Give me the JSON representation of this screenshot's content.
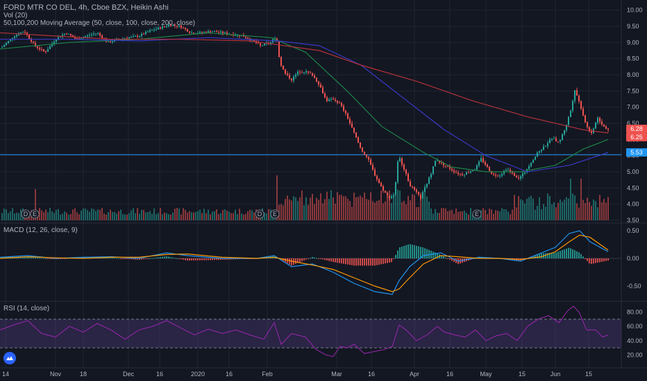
{
  "header": {
    "title": "FORD MTR CO DEL, 4h, Cboe BZX, Heikin Ashi",
    "volume_label": "Vol (20)",
    "ma_label": "50,100,200 Moving Average (50, close, 100, close, 200, close)"
  },
  "panes": {
    "macd_label": "MACD (12, 26, close, 9)",
    "rsi_label": "RSI (14, close)"
  },
  "price_badges": {
    "last_a": "6.28",
    "last_b": "6.25",
    "level": "5.53"
  },
  "colors": {
    "background": "#131722",
    "up": "#26a69a",
    "down": "#ef5350",
    "ma50": "#1e8449",
    "ma100": "#3a39c6",
    "ma200": "#b53239",
    "macd": "#2196f3",
    "signal": "#ff9800",
    "rsi": "#9c27b0",
    "level_line": "#2962ff",
    "grid": "#1f2433"
  },
  "chart_data": [
    {
      "type": "candlestick",
      "title": "FORD MTR CO DEL, 4h, Cboe BZX, Heikin Ashi",
      "x_ticks": [
        "14",
        "Nov",
        "18",
        "Dec",
        "16",
        "2020",
        "16",
        "Feb",
        "Mar",
        "16",
        "Apr",
        "16",
        "May",
        "15",
        "Jun",
        "15"
      ],
      "y_ticks": [
        "10.00",
        "9.50",
        "9.00",
        "8.50",
        "8.00",
        "7.50",
        "7.00",
        "6.50",
        "6.00",
        "5.50",
        "5.00",
        "4.50",
        "4.00",
        "3.50"
      ],
      "ylim": [
        3.5,
        10.1
      ],
      "horizontal_level": 5.53,
      "close_points": [
        [
          0,
          8.8
        ],
        [
          10,
          9.0
        ],
        [
          20,
          9.2
        ],
        [
          35,
          9.35
        ],
        [
          50,
          8.9
        ],
        [
          65,
          8.7
        ],
        [
          80,
          9.1
        ],
        [
          95,
          9.3
        ],
        [
          110,
          9.1
        ],
        [
          125,
          9.2
        ],
        [
          140,
          9.3
        ],
        [
          155,
          9.0
        ],
        [
          170,
          9.1
        ],
        [
          185,
          9.15
        ],
        [
          200,
          9.2
        ],
        [
          215,
          9.35
        ],
        [
          230,
          9.45
        ],
        [
          245,
          9.55
        ],
        [
          260,
          9.5
        ],
        [
          275,
          9.3
        ],
        [
          290,
          9.3
        ],
        [
          305,
          9.35
        ],
        [
          320,
          9.3
        ],
        [
          335,
          9.25
        ],
        [
          350,
          9.2
        ],
        [
          365,
          9.05
        ],
        [
          375,
          8.9
        ],
        [
          390,
          9.0
        ],
        [
          398,
          9.2
        ],
        [
          403,
          8.4
        ],
        [
          410,
          8.05
        ],
        [
          420,
          7.85
        ],
        [
          430,
          8.1
        ],
        [
          440,
          8.1
        ],
        [
          450,
          8.0
        ],
        [
          460,
          7.7
        ],
        [
          470,
          7.2
        ],
        [
          480,
          7.25
        ],
        [
          490,
          7.1
        ],
        [
          500,
          6.7
        ],
        [
          510,
          6.2
        ],
        [
          520,
          5.7
        ],
        [
          530,
          5.4
        ],
        [
          540,
          4.9
        ],
        [
          550,
          4.5
        ],
        [
          560,
          4.2
        ],
        [
          568,
          4.3
        ],
        [
          574,
          5.5
        ],
        [
          582,
          5.1
        ],
        [
          590,
          4.6
        ],
        [
          600,
          4.35
        ],
        [
          606,
          4.2
        ],
        [
          612,
          4.5
        ],
        [
          620,
          4.9
        ],
        [
          628,
          5.4
        ],
        [
          636,
          5.25
        ],
        [
          645,
          5.15
        ],
        [
          655,
          5.0
        ],
        [
          665,
          4.9
        ],
        [
          675,
          5.0
        ],
        [
          685,
          5.1
        ],
        [
          693,
          5.4
        ],
        [
          700,
          5.2
        ],
        [
          710,
          4.9
        ],
        [
          720,
          4.9
        ],
        [
          730,
          5.1
        ],
        [
          740,
          4.9
        ],
        [
          748,
          4.8
        ],
        [
          756,
          5.0
        ],
        [
          765,
          5.3
        ],
        [
          775,
          5.6
        ],
        [
          785,
          5.8
        ],
        [
          795,
          6.05
        ],
        [
          805,
          5.9
        ],
        [
          815,
          6.4
        ],
        [
          822,
          6.9
        ],
        [
          828,
          7.55
        ],
        [
          836,
          7.05
        ],
        [
          845,
          6.4
        ],
        [
          853,
          6.15
        ],
        [
          860,
          6.7
        ],
        [
          868,
          6.45
        ],
        [
          876,
          6.3
        ]
      ],
      "moving_averages": [
        {
          "name": "MA 50",
          "points": [
            [
              0,
              8.8
            ],
            [
              100,
              9.0
            ],
            [
              200,
              9.1
            ],
            [
              300,
              9.3
            ],
            [
              390,
              9.15
            ],
            [
              440,
              8.7
            ],
            [
              500,
              7.5
            ],
            [
              550,
              6.4
            ],
            [
              610,
              5.6
            ],
            [
              650,
              5.15
            ],
            [
              700,
              5.0
            ],
            [
              750,
              5.0
            ],
            [
              800,
              5.2
            ],
            [
              840,
              5.7
            ],
            [
              876,
              6.0
            ]
          ]
        },
        {
          "name": "MA 100",
          "points": [
            [
              0,
              9.1
            ],
            [
              100,
              9.1
            ],
            [
              200,
              9.05
            ],
            [
              300,
              9.15
            ],
            [
              400,
              9.05
            ],
            [
              460,
              8.9
            ],
            [
              520,
              8.3
            ],
            [
              580,
              7.3
            ],
            [
              640,
              6.3
            ],
            [
              700,
              5.5
            ],
            [
              760,
              5.0
            ],
            [
              820,
              5.2
            ],
            [
              876,
              5.6
            ]
          ]
        },
        {
          "name": "MA 200",
          "points": [
            [
              0,
              9.3
            ],
            [
              80,
              9.2
            ],
            [
              160,
              9.1
            ],
            [
              260,
              9.1
            ],
            [
              360,
              9.05
            ],
            [
              460,
              8.75
            ],
            [
              520,
              8.3
            ],
            [
              600,
              7.8
            ],
            [
              680,
              7.2
            ],
            [
              760,
              6.7
            ],
            [
              840,
              6.3
            ],
            [
              876,
              6.2
            ]
          ]
        }
      ]
    },
    {
      "type": "bar",
      "title": "Vol (20)",
      "note": "volume bars share the price pane bottom, no scale shown"
    },
    {
      "type": "line",
      "title": "MACD (12, 26, close, 9)",
      "y_ticks": [
        "0.50",
        "0.00",
        "-0.50"
      ],
      "ylim": [
        -0.75,
        0.6
      ],
      "series": [
        {
          "name": "MACD",
          "points": [
            [
              0,
              0.02
            ],
            [
              40,
              0.05
            ],
            [
              80,
              0.0
            ],
            [
              120,
              0.02
            ],
            [
              160,
              0.03
            ],
            [
              200,
              0.0
            ],
            [
              240,
              0.1
            ],
            [
              270,
              0.05
            ],
            [
              320,
              0.0
            ],
            [
              370,
              0.0
            ],
            [
              395,
              0.05
            ],
            [
              420,
              -0.15
            ],
            [
              450,
              -0.1
            ],
            [
              480,
              -0.25
            ],
            [
              510,
              -0.45
            ],
            [
              540,
              -0.6
            ],
            [
              565,
              -0.65
            ],
            [
              575,
              -0.4
            ],
            [
              590,
              -0.15
            ],
            [
              610,
              0.05
            ],
            [
              635,
              0.1
            ],
            [
              660,
              -0.05
            ],
            [
              690,
              0.02
            ],
            [
              720,
              0.0
            ],
            [
              750,
              -0.05
            ],
            [
              780,
              0.1
            ],
            [
              800,
              0.2
            ],
            [
              820,
              0.45
            ],
            [
              835,
              0.5
            ],
            [
              850,
              0.3
            ],
            [
              876,
              0.12
            ]
          ]
        },
        {
          "name": "Signal",
          "points": [
            [
              0,
              0.0
            ],
            [
              40,
              0.03
            ],
            [
              80,
              0.01
            ],
            [
              120,
              0.0
            ],
            [
              160,
              0.02
            ],
            [
              200,
              0.02
            ],
            [
              240,
              0.07
            ],
            [
              270,
              0.08
            ],
            [
              320,
              0.02
            ],
            [
              370,
              0.0
            ],
            [
              395,
              0.02
            ],
            [
              420,
              -0.05
            ],
            [
              450,
              -0.12
            ],
            [
              480,
              -0.2
            ],
            [
              510,
              -0.35
            ],
            [
              540,
              -0.5
            ],
            [
              565,
              -0.6
            ],
            [
              575,
              -0.55
            ],
            [
              590,
              -0.35
            ],
            [
              610,
              -0.1
            ],
            [
              635,
              0.05
            ],
            [
              660,
              0.03
            ],
            [
              690,
              0.0
            ],
            [
              720,
              0.0
            ],
            [
              750,
              -0.02
            ],
            [
              780,
              0.03
            ],
            [
              800,
              0.12
            ],
            [
              820,
              0.3
            ],
            [
              835,
              0.42
            ],
            [
              850,
              0.38
            ],
            [
              876,
              0.15
            ]
          ]
        }
      ]
    },
    {
      "type": "line",
      "title": "RSI (14, close)",
      "y_ticks": [
        "80.00",
        "60.00",
        "40.00",
        "20.00"
      ],
      "ylim": [
        5,
        92
      ],
      "bands": [
        30,
        70
      ],
      "series": [
        {
          "name": "RSI",
          "points": [
            [
              0,
              55
            ],
            [
              20,
              62
            ],
            [
              40,
              68
            ],
            [
              60,
              50
            ],
            [
              80,
              45
            ],
            [
              100,
              60
            ],
            [
              120,
              52
            ],
            [
              140,
              64
            ],
            [
              160,
              55
            ],
            [
              180,
              42
            ],
            [
              200,
              55
            ],
            [
              220,
              60
            ],
            [
              240,
              68
            ],
            [
              260,
              58
            ],
            [
              280,
              48
            ],
            [
              300,
              56
            ],
            [
              320,
              50
            ],
            [
              340,
              55
            ],
            [
              360,
              48
            ],
            [
              380,
              42
            ],
            [
              395,
              65
            ],
            [
              405,
              35
            ],
            [
              420,
              50
            ],
            [
              440,
              45
            ],
            [
              455,
              28
            ],
            [
              470,
              20
            ],
            [
              480,
              18
            ],
            [
              490,
              32
            ],
            [
              500,
              30
            ],
            [
              510,
              35
            ],
            [
              525,
              22
            ],
            [
              540,
              25
            ],
            [
              555,
              28
            ],
            [
              565,
              32
            ],
            [
              575,
              62
            ],
            [
              585,
              55
            ],
            [
              600,
              40
            ],
            [
              615,
              48
            ],
            [
              630,
              60
            ],
            [
              640,
              52
            ],
            [
              655,
              48
            ],
            [
              670,
              45
            ],
            [
              685,
              55
            ],
            [
              700,
              40
            ],
            [
              715,
              47
            ],
            [
              730,
              50
            ],
            [
              745,
              40
            ],
            [
              760,
              60
            ],
            [
              775,
              70
            ],
            [
              790,
              75
            ],
            [
              805,
              65
            ],
            [
              818,
              82
            ],
            [
              826,
              88
            ],
            [
              834,
              80
            ],
            [
              845,
              55
            ],
            [
              858,
              55
            ],
            [
              868,
              45
            ],
            [
              876,
              48
            ]
          ]
        }
      ]
    }
  ]
}
